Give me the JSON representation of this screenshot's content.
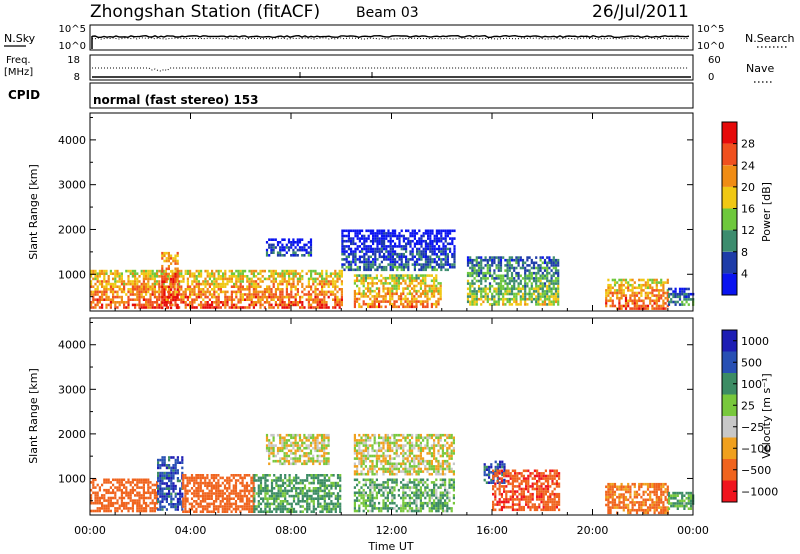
{
  "header": {
    "title": "Zhongshan Station (fitACF)",
    "beam": "Beam 03",
    "date": "26/Jul/2011"
  },
  "noise_panel": {
    "left_label": "N.Sky",
    "left_ticks": [
      "10^5",
      "10^0"
    ],
    "right_ticks": [
      "10^5",
      "10^0"
    ],
    "right_label": "N.Search"
  },
  "freq_panel": {
    "left_label_1": "Freq.",
    "left_label_2": "[MHz]",
    "left_ticks": [
      "18",
      "8"
    ],
    "right_ticks": [
      "60",
      "0"
    ],
    "right_label": "Nave"
  },
  "cpid_panel": {
    "label": "CPID",
    "mode": "normal (fast stereo) 153"
  },
  "colors": {
    "power_scale": [
      "#0a14f0",
      "#1e3ca8",
      "#3c8c6e",
      "#6ec83c",
      "#f0c814",
      "#f08c14",
      "#f0501e",
      "#e60a0a"
    ],
    "velocity_scale": [
      "#f0141e",
      "#f0641e",
      "#f0a01e",
      "#c8c8c8",
      "#78c83c",
      "#3c8c64",
      "#2850b4",
      "#1e1eb4"
    ]
  },
  "chart_data": [
    {
      "type": "heatmap",
      "title": "",
      "xlabel": "",
      "ylabel": "Slant Range [km]",
      "ylim": [
        180,
        4600
      ],
      "y_ticks": [
        1000,
        2000,
        3000,
        4000
      ],
      "x_ticks": [
        "00:00",
        "04:00",
        "08:00",
        "12:00",
        "16:00",
        "20:00",
        "00:00"
      ],
      "x_range_hours": [
        0,
        24
      ],
      "colorbar": {
        "label": "Power [dB]",
        "ticks": [
          4,
          8,
          12,
          16,
          20,
          24,
          28
        ],
        "range": [
          0,
          32
        ]
      },
      "echo_regions": [
        {
          "start": "00:00",
          "end": "10:00",
          "range_km": [
            250,
            1100
          ],
          "power_db": 22
        },
        {
          "start": "02:50",
          "end": "03:30",
          "range_km": [
            250,
            1500
          ],
          "power_db": 26
        },
        {
          "start": "07:00",
          "end": "08:50",
          "range_km": [
            1400,
            1800
          ],
          "power_db": 4
        },
        {
          "start": "10:00",
          "end": "14:30",
          "range_km": [
            1100,
            2000
          ],
          "power_db": 4
        },
        {
          "start": "10:30",
          "end": "14:00",
          "range_km": [
            250,
            1000
          ],
          "power_db": 20
        },
        {
          "start": "15:00",
          "end": "18:40",
          "range_km": [
            300,
            1400
          ],
          "power_db": 12
        },
        {
          "start": "20:30",
          "end": "23:00",
          "range_km": [
            250,
            900
          ],
          "power_db": 22
        },
        {
          "start": "23:00",
          "end": "24:00",
          "range_km": [
            300,
            700
          ],
          "power_db": 8
        }
      ]
    },
    {
      "type": "heatmap",
      "title": "",
      "xlabel": "Time UT",
      "ylabel": "Slant Range [km]",
      "ylim": [
        180,
        4600
      ],
      "y_ticks": [
        1000,
        2000,
        3000,
        4000
      ],
      "x_ticks": [
        "00:00",
        "04:00",
        "08:00",
        "12:00",
        "16:00",
        "20:00",
        "00:00"
      ],
      "x_range_hours": [
        0,
        24
      ],
      "colorbar": {
        "label": "Velocity [m s⁻¹]",
        "ticks": [
          "1000",
          "500",
          "100",
          "25",
          "−25",
          "−100",
          "−500",
          "−1000"
        ]
      },
      "echo_regions": [
        {
          "start": "00:00",
          "end": "02:40",
          "range_km": [
            250,
            1000
          ],
          "velocity": -300
        },
        {
          "start": "02:40",
          "end": "03:40",
          "range_km": [
            300,
            1500
          ],
          "velocity": 800
        },
        {
          "start": "03:40",
          "end": "06:30",
          "range_km": [
            250,
            1100
          ],
          "velocity": -300
        },
        {
          "start": "06:30",
          "end": "10:00",
          "range_km": [
            250,
            1100
          ],
          "velocity": 150
        },
        {
          "start": "07:00",
          "end": "09:30",
          "range_km": [
            1300,
            2000
          ],
          "velocity": 0
        },
        {
          "start": "10:30",
          "end": "14:30",
          "range_km": [
            1100,
            2000
          ],
          "velocity": 0
        },
        {
          "start": "10:30",
          "end": "14:30",
          "range_km": [
            250,
            1000
          ],
          "velocity": 100
        },
        {
          "start": "15:40",
          "end": "16:30",
          "range_km": [
            900,
            1400
          ],
          "velocity": 900
        },
        {
          "start": "16:00",
          "end": "18:40",
          "range_km": [
            300,
            1200
          ],
          "velocity": -400
        },
        {
          "start": "20:30",
          "end": "23:00",
          "range_km": [
            250,
            900
          ],
          "velocity": -150
        },
        {
          "start": "23:00",
          "end": "24:00",
          "range_km": [
            300,
            700
          ],
          "velocity": 120
        }
      ]
    }
  ]
}
